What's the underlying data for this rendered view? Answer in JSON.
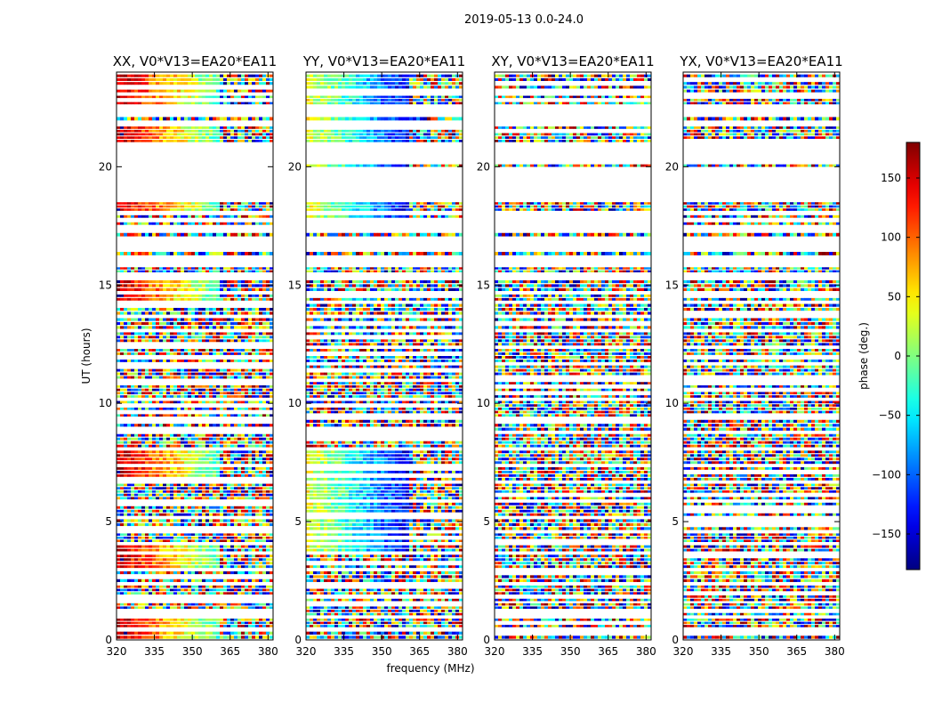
{
  "figure": {
    "title": "2019-05-13 0.0-24.0",
    "xlabel": "frequency (MHz)",
    "ylabel": "UT (hours)"
  },
  "colorbar": {
    "label": "phase (deg.)",
    "range": [
      -180,
      180
    ],
    "ticks": [
      150,
      100,
      50,
      0,
      -50,
      -100,
      -150
    ],
    "tick_labels": [
      "150",
      "100",
      "50",
      "0",
      "−50",
      "−100",
      "−150"
    ],
    "colormap": "jet"
  },
  "chart_data": [
    {
      "type": "heatmap",
      "title": "XX, V0*V13=EA20*EA11",
      "xlabel": "frequency (MHz)",
      "ylabel": "UT (hours)",
      "xlim": [
        320,
        382
      ],
      "ylim": [
        0,
        24
      ],
      "x_ticks": [
        "320",
        "335",
        "350",
        "365",
        "380"
      ],
      "y_ticks": [
        "0",
        "5",
        "10",
        "15",
        "20"
      ],
      "coherent_phase_deg": 160
    },
    {
      "type": "heatmap",
      "title": "YY, V0*V13=EA20*EA11",
      "xlabel": "frequency (MHz)",
      "ylabel": "",
      "xlim": [
        320,
        382
      ],
      "ylim": [
        0,
        24
      ],
      "x_ticks": [
        "320",
        "335",
        "350",
        "365",
        "380"
      ],
      "y_ticks": [
        "0",
        "5",
        "10",
        "15",
        "20"
      ],
      "coherent_phase_deg": 40
    },
    {
      "type": "heatmap",
      "title": "XY, V0*V13=EA20*EA11",
      "xlabel": "",
      "ylabel": "",
      "xlim": [
        320,
        382
      ],
      "ylim": [
        0,
        24
      ],
      "x_ticks": [
        "320",
        "335",
        "350",
        "365",
        "380"
      ],
      "y_ticks": [
        "0",
        "5",
        "10",
        "15",
        "20"
      ],
      "coherent_phase_deg": null
    },
    {
      "type": "heatmap",
      "title": "YX, V0*V13=EA20*EA11",
      "xlabel": "",
      "ylabel": "",
      "xlim": [
        320,
        382
      ],
      "ylim": [
        0,
        24
      ],
      "x_ticks": [
        "320",
        "335",
        "350",
        "365",
        "380"
      ],
      "y_ticks": [
        "0",
        "5",
        "10",
        "15",
        "20"
      ],
      "coherent_phase_deg": null
    }
  ],
  "time_blocks_hours": [
    [
      0.0,
      0.35
    ],
    [
      0.5,
      0.9
    ],
    [
      1.0,
      1.55
    ],
    [
      1.6,
      2.3
    ],
    [
      2.4,
      2.9
    ],
    [
      3.0,
      3.6
    ],
    [
      3.7,
      4.0
    ],
    [
      4.1,
      4.5
    ],
    [
      4.6,
      5.1
    ],
    [
      5.2,
      5.8
    ],
    [
      5.9,
      6.6
    ],
    [
      6.7,
      7.3
    ],
    [
      7.4,
      8.0
    ],
    [
      8.1,
      8.7
    ],
    [
      8.8,
      9.3
    ],
    [
      9.4,
      10.1
    ],
    [
      10.2,
      10.9
    ],
    [
      11.0,
      11.6
    ],
    [
      11.7,
      12.3
    ],
    [
      12.4,
      13.0
    ],
    [
      13.1,
      13.6
    ],
    [
      13.7,
      14.2
    ],
    [
      14.3,
      14.6
    ],
    [
      14.7,
      15.2
    ],
    [
      15.5,
      15.75
    ],
    [
      16.2,
      16.4
    ],
    [
      17.0,
      17.2
    ],
    [
      17.5,
      17.65
    ],
    [
      17.8,
      17.95
    ],
    [
      18.1,
      18.5
    ],
    [
      19.95,
      20.1
    ],
    [
      21.0,
      21.7
    ],
    [
      21.9,
      22.1
    ],
    [
      22.6,
      23.0
    ],
    [
      23.1,
      23.9
    ]
  ],
  "xx_coherent_hours": [
    [
      0.3,
      0.55
    ],
    [
      3.6,
      3.8
    ],
    [
      7.2,
      7.5
    ],
    [
      7.8,
      8.0
    ],
    [
      14.4,
      14.7
    ],
    [
      18.1,
      18.4
    ],
    [
      20.0,
      20.1
    ],
    [
      23.0,
      23.9
    ],
    [
      21.0,
      21.6
    ]
  ]
}
